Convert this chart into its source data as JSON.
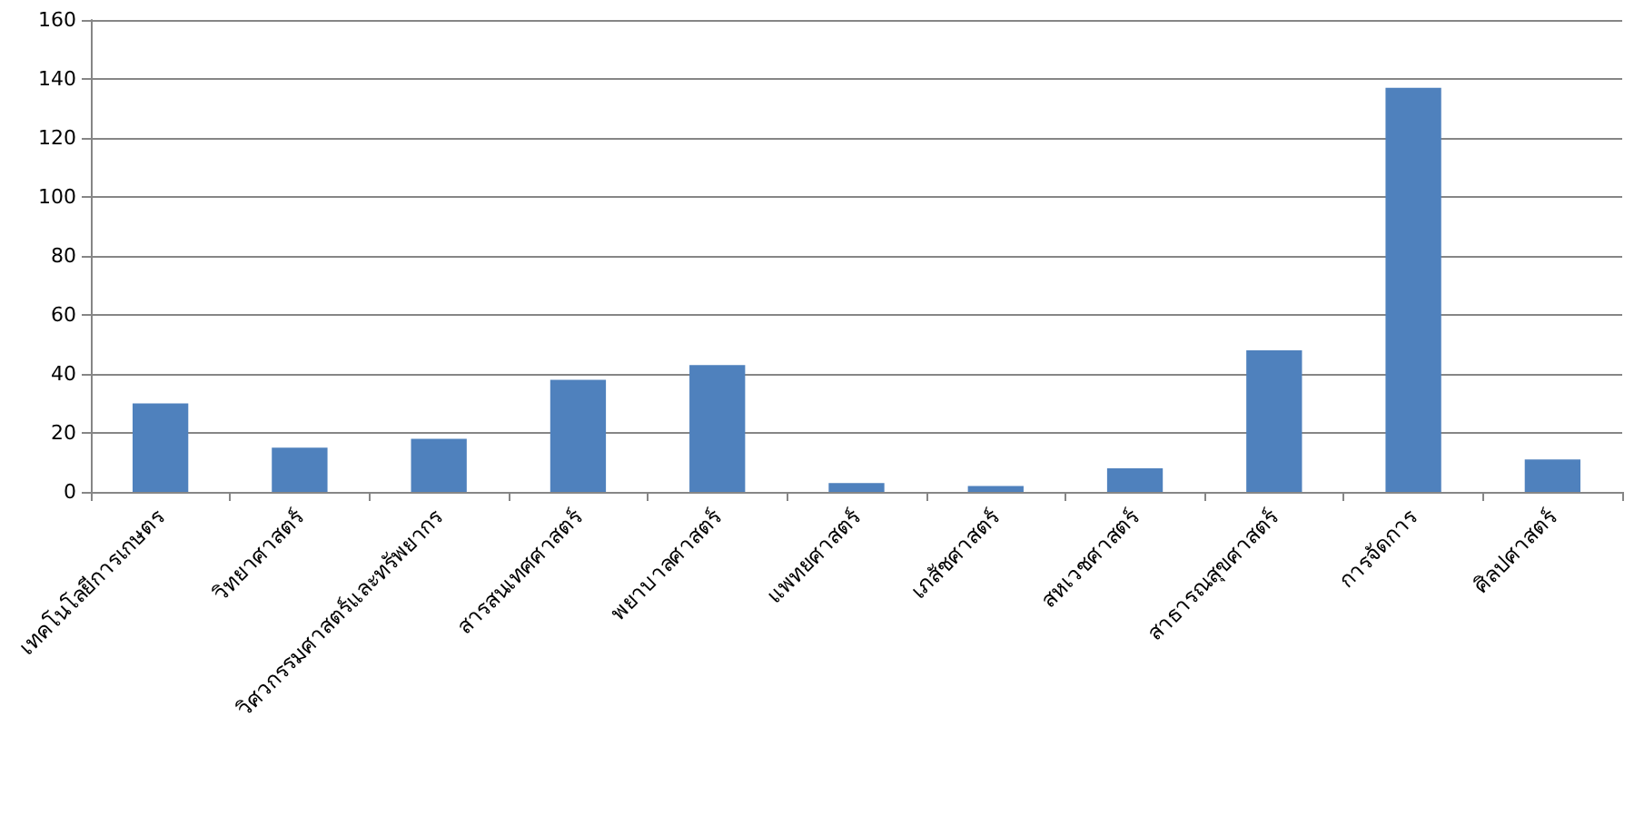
{
  "chart_data": {
    "type": "bar",
    "categories": [
      "เทคโนโลยีการเกษตร",
      "วิทยาศาสตร์",
      "วิศวกรรมศาสตร์และทรัพยากร",
      "สารสนเทศศาสตร์",
      "พยาบาลศาสตร์",
      "แพทยศาสตร์",
      "เภสัชศาสตร์",
      "สหเวชศาสตร์",
      "สาธารณสุขศาสตร์",
      "การจัดการ",
      "ศิลปศาสตร์"
    ],
    "values": [
      30,
      15,
      18,
      38,
      43,
      3,
      2,
      8,
      48,
      137,
      11
    ],
    "color": "#4f81bd",
    "ylim": [
      0,
      160
    ],
    "yticks": [
      0,
      20,
      40,
      60,
      80,
      100,
      120,
      140,
      160
    ],
    "grid": "y"
  }
}
